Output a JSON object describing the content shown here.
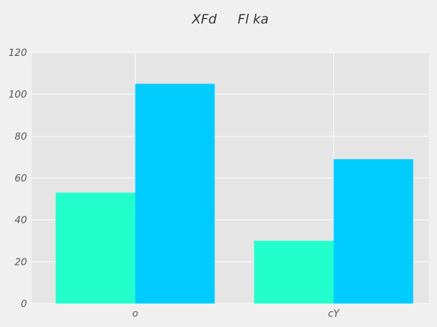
{
  "chart_data": {
    "type": "bar",
    "title": "XFd     Fl ka",
    "xlabel": "",
    "ylabel": "",
    "categories": [
      "o",
      "cY"
    ],
    "series": [
      {
        "color": "#22ffcc",
        "values": [
          53,
          30
        ]
      },
      {
        "color": "#00ccff",
        "values": [
          105,
          69
        ]
      }
    ],
    "ylim": [
      0,
      120
    ],
    "yticks": [
      0,
      20,
      40,
      60,
      80,
      100,
      120
    ],
    "grid": true,
    "legend": "none",
    "colors": {
      "background": "#f0f0f0",
      "plot_background": "#e5e5e5",
      "grid": "#ffffff"
    }
  }
}
